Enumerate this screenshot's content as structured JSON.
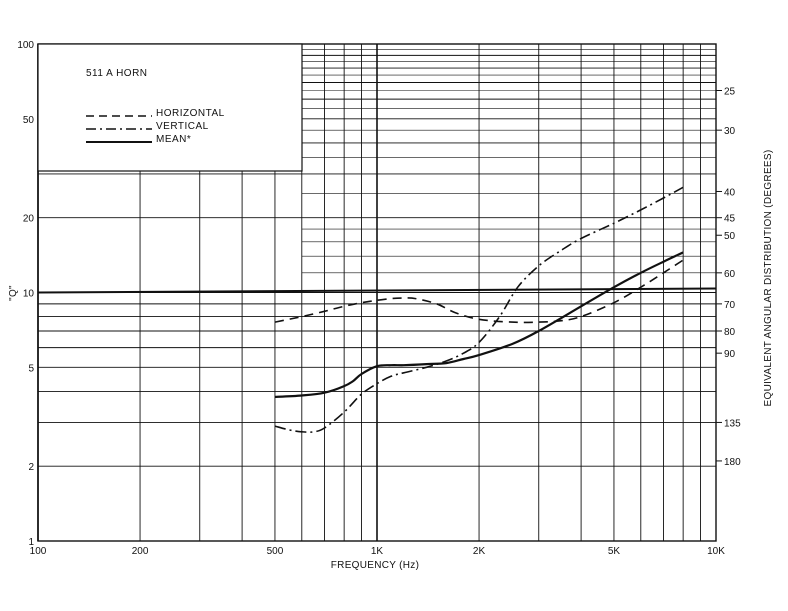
{
  "chart_data": {
    "type": "line",
    "title": "511 A HORN",
    "xlabel": "FREQUENCY (Hz)",
    "ylabel": "\"Q\"",
    "y2label": "EQUIVALENT ANGULAR DISTRIBUTION (DEGREES)",
    "x_scale": "log",
    "y_scale": "log",
    "xlim": [
      100,
      10000
    ],
    "ylim": [
      1,
      100
    ],
    "grid": true,
    "legend_position": "top-left",
    "x_ticks": [
      {
        "value": 100,
        "label": "100"
      },
      {
        "value": 200,
        "label": "200"
      },
      {
        "value": 500,
        "label": "500"
      },
      {
        "value": 1000,
        "label": "1K"
      },
      {
        "value": 2000,
        "label": "2K"
      },
      {
        "value": 5000,
        "label": "5K"
      },
      {
        "value": 10000,
        "label": "10K"
      }
    ],
    "y_ticks": [
      {
        "value": 1,
        "label": "1"
      },
      {
        "value": 2,
        "label": "2"
      },
      {
        "value": 5,
        "label": "5"
      },
      {
        "value": 10,
        "label": "10"
      },
      {
        "value": 20,
        "label": "20"
      },
      {
        "value": 50,
        "label": "50"
      },
      {
        "value": 100,
        "label": "100"
      }
    ],
    "right_ticks": [
      {
        "q": 65.0,
        "label": "25"
      },
      {
        "q": 45.0,
        "label": "30"
      },
      {
        "q": 25.5,
        "label": "40"
      },
      {
        "q": 20.0,
        "label": "45"
      },
      {
        "q": 17.0,
        "label": "50"
      },
      {
        "q": 12.0,
        "label": "60"
      },
      {
        "q": 9.0,
        "label": "70"
      },
      {
        "q": 7.0,
        "label": "80"
      },
      {
        "q": 5.7,
        "label": "90"
      },
      {
        "q": 3.0,
        "label": "135"
      },
      {
        "q": 2.1,
        "label": "180"
      }
    ],
    "series": [
      {
        "name": "HORIZONTAL",
        "style": "dashed",
        "x": [
          500,
          600,
          700,
          800,
          900,
          1000,
          1100,
          1200,
          1300,
          1500,
          1700,
          2000,
          2500,
          3000,
          3500,
          4000,
          5000,
          6000,
          7000,
          8000
        ],
        "y": [
          7.6,
          8.0,
          8.4,
          8.8,
          9.1,
          9.3,
          9.45,
          9.5,
          9.45,
          9.0,
          8.3,
          7.8,
          7.6,
          7.6,
          7.7,
          8.0,
          9.1,
          10.5,
          12.0,
          13.5
        ]
      },
      {
        "name": "VERTICAL",
        "style": "dash-dot",
        "x": [
          500,
          550,
          600,
          650,
          700,
          800,
          900,
          1000,
          1100,
          1200,
          1400,
          1600,
          1800,
          2000,
          2300,
          2600,
          3000,
          3500,
          4000,
          5000,
          6000,
          7000,
          8000
        ],
        "y": [
          2.9,
          2.8,
          2.75,
          2.75,
          2.85,
          3.3,
          3.9,
          4.3,
          4.6,
          4.75,
          5.0,
          5.3,
          5.7,
          6.3,
          8.0,
          10.5,
          12.8,
          14.8,
          16.5,
          19.0,
          21.5,
          24.0,
          26.5
        ]
      },
      {
        "name": "MEAN*",
        "style": "solid",
        "x": [
          500,
          600,
          700,
          800,
          850,
          900,
          1000,
          1100,
          1200,
          1400,
          1600,
          1800,
          2000,
          2500,
          3000,
          4000,
          5000,
          6000,
          7000,
          8000
        ],
        "y": [
          3.8,
          3.85,
          3.95,
          4.2,
          4.4,
          4.7,
          5.05,
          5.1,
          5.1,
          5.15,
          5.2,
          5.4,
          5.6,
          6.2,
          7.0,
          8.8,
          10.5,
          12.0,
          13.3,
          14.5
        ]
      }
    ]
  },
  "marks": {
    "reference_q": 10
  }
}
